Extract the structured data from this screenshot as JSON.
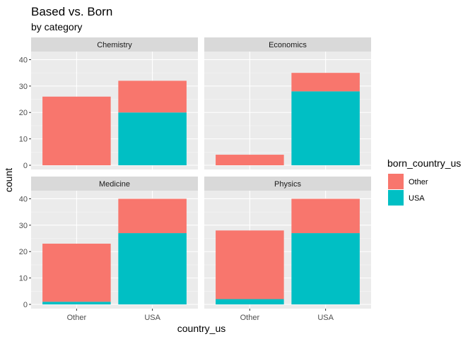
{
  "chart_data": {
    "type": "bar",
    "stacked": true,
    "title": "Based vs. Born",
    "subtitle": "by category",
    "xlabel": "country_us",
    "ylabel": "count",
    "categories": [
      "Other",
      "USA"
    ],
    "ylim": [
      0,
      42
    ],
    "yticks": [
      0,
      10,
      20,
      30,
      40
    ],
    "grid": true,
    "legend": {
      "title": "born_country_us",
      "position": "right",
      "entries": [
        {
          "name": "Other",
          "color": "#F8766D"
        },
        {
          "name": "USA",
          "color": "#00BFC4"
        }
      ]
    },
    "facets": [
      {
        "name": "Chemistry",
        "series": [
          {
            "name": "USA",
            "values": [
              0,
              20
            ]
          },
          {
            "name": "Other",
            "values": [
              26,
              12
            ]
          }
        ]
      },
      {
        "name": "Economics",
        "series": [
          {
            "name": "USA",
            "values": [
              0,
              28
            ]
          },
          {
            "name": "Other",
            "values": [
              4,
              7
            ]
          }
        ]
      },
      {
        "name": "Medicine",
        "series": [
          {
            "name": "USA",
            "values": [
              1,
              27
            ]
          },
          {
            "name": "Other",
            "values": [
              22,
              13
            ]
          }
        ]
      },
      {
        "name": "Physics",
        "series": [
          {
            "name": "USA",
            "values": [
              2,
              27
            ]
          },
          {
            "name": "Other",
            "values": [
              26,
              13
            ]
          }
        ]
      }
    ]
  }
}
